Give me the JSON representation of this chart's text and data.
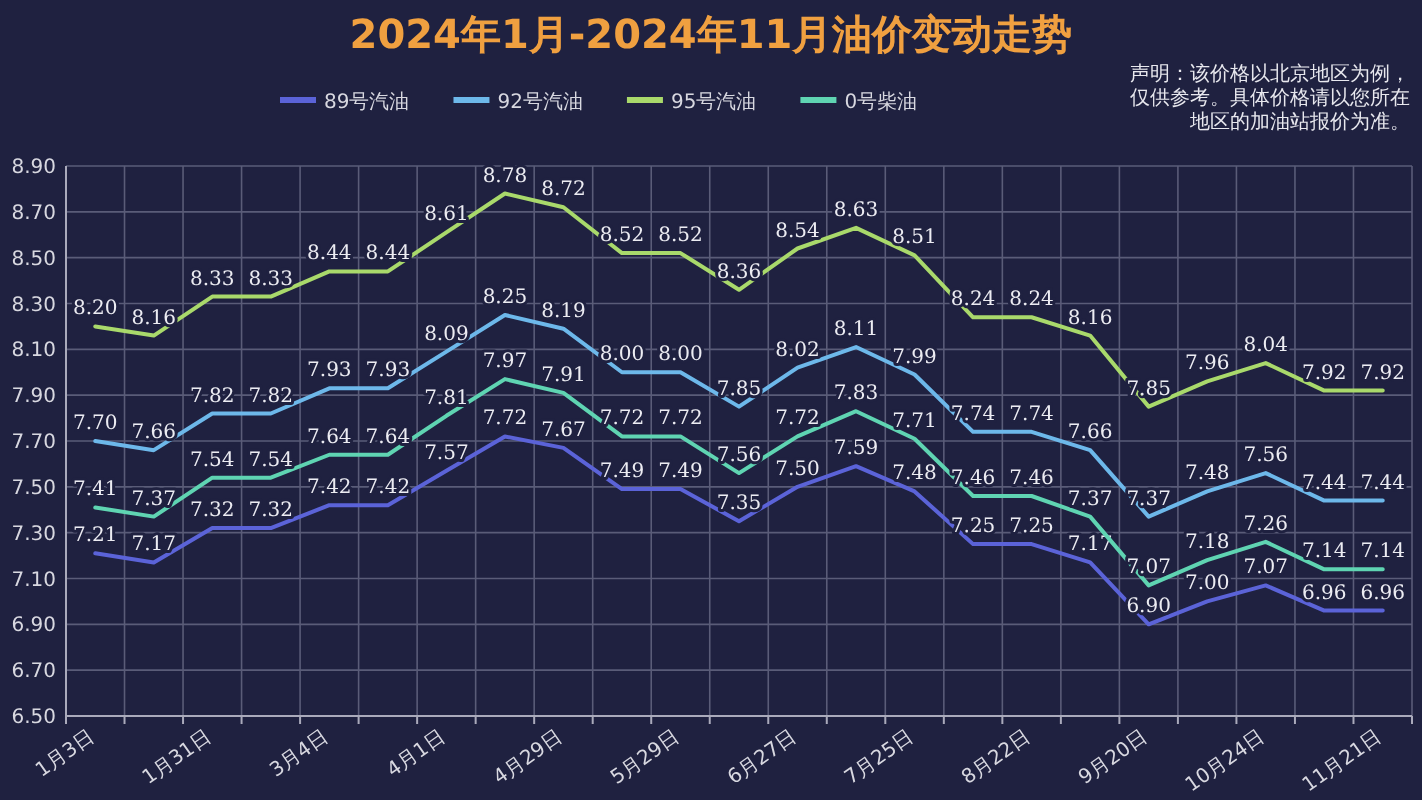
{
  "chart_data": {
    "type": "line",
    "title": "2024年1月-2024年11月油价变动走势",
    "annotations": [
      "声明：该价格以北京地区为例，仅供参考。具体价格请以您所在地区的加油站报价为准。"
    ],
    "categories": [
      "1月3日",
      null,
      "1月31日",
      null,
      "3月4日",
      null,
      "4月1日",
      null,
      "4月29日",
      null,
      "5月29日",
      null,
      "6月27日",
      null,
      "7月25日",
      null,
      "8月22日",
      null,
      "9月20日",
      null,
      "10月24日",
      null,
      "11月21日"
    ],
    "series": [
      {
        "name": "89号汽油",
        "color": "#5b63d8",
        "values": [
          7.21,
          7.17,
          7.32,
          7.32,
          7.42,
          7.42,
          7.57,
          7.72,
          7.67,
          7.49,
          7.49,
          7.35,
          7.5,
          7.59,
          7.48,
          7.25,
          7.25,
          7.17,
          6.9,
          7.0,
          7.07,
          6.96,
          6.96
        ],
        "value_labels": [
          "7.21",
          "7.17",
          "7.32",
          "7.32",
          "7.42",
          "7.42",
          "7.57",
          "7.72",
          "7.67",
          "7.49",
          "7.49",
          "7.35",
          "7.50",
          "7.59",
          "7.48",
          "7.25",
          "7.25",
          "7.17",
          "6.90",
          "7.00",
          "7.07",
          "6.96",
          "6.96"
        ]
      },
      {
        "name": "92号汽油",
        "color": "#6db8ea",
        "values": [
          7.7,
          7.66,
          7.82,
          7.82,
          7.93,
          7.93,
          8.09,
          8.25,
          8.19,
          8.0,
          8.0,
          7.85,
          8.02,
          8.11,
          7.99,
          7.74,
          7.74,
          7.66,
          7.37,
          7.48,
          7.56,
          7.44,
          7.44
        ],
        "value_labels": [
          "7.70",
          "7.66",
          "7.82",
          "7.82",
          "7.93",
          "7.93",
          "8.09",
          "8.25",
          "8.19",
          "8.00",
          "8.00",
          "7.85",
          "8.02",
          "8.11",
          "7.99",
          "7.74",
          "7.74",
          "7.66",
          "7.37",
          "7.48",
          "7.56",
          "7.44",
          "7.44"
        ]
      },
      {
        "name": "95号汽油",
        "color": "#a9d96b",
        "values": [
          8.2,
          8.16,
          8.33,
          8.33,
          8.44,
          8.44,
          8.61,
          8.78,
          8.72,
          8.52,
          8.52,
          8.36,
          8.54,
          8.63,
          8.51,
          8.24,
          8.24,
          8.16,
          7.85,
          7.96,
          8.04,
          7.92,
          7.92
        ],
        "value_labels": [
          "8.20",
          "8.16",
          "8.33",
          "8.33",
          "8.44",
          "8.44",
          "8.61",
          "8.78",
          "8.72",
          "8.52",
          "8.52",
          "8.36",
          "8.54",
          "8.63",
          "8.51",
          "8.24",
          "8.24",
          "8.16",
          "7.85",
          "7.96",
          "8.04",
          "7.92",
          "7.92"
        ]
      },
      {
        "name": "0号柴油",
        "color": "#5fd4b2",
        "values": [
          7.41,
          7.37,
          7.54,
          7.54,
          7.64,
          7.64,
          7.81,
          7.97,
          7.91,
          7.72,
          7.72,
          7.56,
          7.72,
          7.83,
          7.71,
          7.46,
          7.46,
          7.37,
          7.07,
          7.18,
          7.26,
          7.14,
          7.14
        ],
        "value_labels": [
          "7.41",
          "7.37",
          "7.54",
          "7.54",
          "7.64",
          "7.64",
          "7.81",
          "7.97",
          "7.91",
          "7.72",
          "7.72",
          "7.56",
          "7.72",
          "7.83",
          "7.71",
          "7.46",
          "7.46",
          "7.37",
          "7.07",
          "7.18",
          "7.26",
          "7.14",
          "7.14"
        ]
      }
    ],
    "ylim": [
      6.5,
      8.9
    ],
    "yticks": [
      {
        "value": 6.5,
        "label": "6.50"
      },
      {
        "value": 6.7,
        "label": "6.70"
      },
      {
        "value": 6.9,
        "label": "6.90"
      },
      {
        "value": 7.1,
        "label": "7.10"
      },
      {
        "value": 7.3,
        "label": "7.30"
      },
      {
        "value": 7.5,
        "label": "7.50"
      },
      {
        "value": 7.7,
        "label": "7.70"
      },
      {
        "value": 7.9,
        "label": "7.90"
      },
      {
        "value": 8.1,
        "label": "8.10"
      },
      {
        "value": 8.3,
        "label": "8.30"
      },
      {
        "value": 8.5,
        "label": "8.50"
      },
      {
        "value": 8.7,
        "label": "8.70"
      },
      {
        "value": 8.9,
        "label": "8.90"
      }
    ],
    "grid": true,
    "legend": "top",
    "marker": "none",
    "line_style": "solid"
  }
}
